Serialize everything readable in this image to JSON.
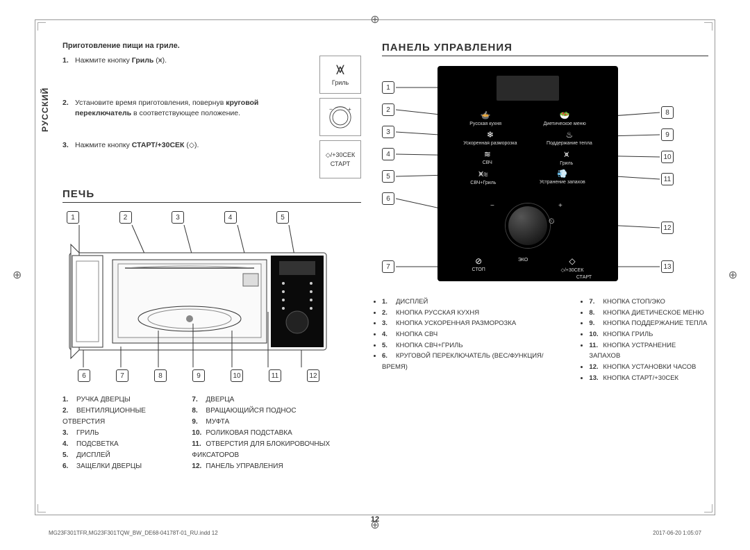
{
  "meta": {
    "page_number": "12",
    "footer_left": "MG23F301TFR,MG23F301TQW_BW_DE68-04178T-01_RU.indd   12",
    "footer_right": "2017-06-20   1:05:07",
    "language_tab": "РУССКИЙ"
  },
  "colors": {
    "text": "#333333",
    "panel_bg": "#000000",
    "panel_text": "#dddddd",
    "border": "#999999"
  },
  "left": {
    "cooking_title": "Приготовление пищи на гриле.",
    "steps": [
      {
        "num": "1.",
        "html": "Нажмите кнопку <b>Гриль</b> (⩙)."
      },
      {
        "num": "2.",
        "html": "Установите время приготовления, повернув <b>круговой переключатель</b> в соответствующее положение."
      },
      {
        "num": "3.",
        "html": "Нажмите кнопку <b>СТАРТ/+30СЕК</b> (◇)."
      }
    ],
    "icon1": {
      "symbol": "⩙",
      "label": "Гриль"
    },
    "icon3_top": "◇/+30СЕК",
    "icon3_bottom": "СТАРТ",
    "section_oven": "ПЕЧЬ",
    "oven_callouts_top": [
      "1",
      "2",
      "3",
      "4",
      "5"
    ],
    "oven_callouts_bottom": [
      "6",
      "7",
      "8",
      "9",
      "10",
      "11",
      "12"
    ],
    "oven_legend_left": [
      "РУЧКА ДВЕРЦЫ",
      "ВЕНТИЛЯЦИОННЫЕ ОТВЕРСТИЯ",
      "ГРИЛЬ",
      "ПОДСВЕТКА",
      "ДИСПЛЕЙ",
      "ЗАЩЕЛКИ ДВЕРЦЫ"
    ],
    "oven_legend_right": [
      "ДВЕРЦА",
      "ВРАЩАЮЩИЙСЯ ПОДНОС",
      "МУФТА",
      "РОЛИКОВАЯ ПОДСТАВКА",
      "ОТВЕРСТИЯ ДЛЯ БЛОКИРОВОЧНЫХ ФИКСАТОРОВ",
      "ПАНЕЛЬ УПРАВЛЕНИЯ"
    ]
  },
  "right": {
    "section_panel": "ПАНЕЛЬ УПРАВЛЕНИЯ",
    "left_callouts": [
      "1",
      "2",
      "3",
      "4",
      "5",
      "6",
      "7"
    ],
    "right_callouts": [
      "8",
      "9",
      "10",
      "11",
      "12",
      "13"
    ],
    "btn_rows": {
      "row1_labels": [
        "Русская кухня",
        "Диетическое меню"
      ],
      "row2_labels": [
        "Ускоренная разморозка",
        "Поддержание тепла"
      ],
      "row3_labels": [
        "СВЧ",
        "Гриль"
      ],
      "row4_labels": [
        "СВЧ+Гриль",
        "Устранение запахов"
      ],
      "bottom": [
        "СТОП",
        "ЭКО",
        "СТАРТ"
      ]
    },
    "plus30": "◇/+30СЕК",
    "legend_left": [
      "ДИСПЛЕЙ",
      "КНОПКА РУССКАЯ КУХНЯ",
      "КНОПКА УСКОРЕННАЯ РАЗМОРОЗКА",
      "КНОПКА СВЧ",
      "КНОПКА СВЧ+ГРИЛЬ",
      "КРУГОВОЙ ПЕРЕКЛЮЧАТЕЛЬ (ВЕС/ФУНКЦИЯ/ВРЕМЯ)"
    ],
    "legend_right": [
      "КНОПКА СТОП/ЭКО",
      "КНОПКА ДИЕТИЧЕСКОЕ МЕНЮ",
      "КНОПКА ПОДДЕРЖАНИЕ ТЕПЛА",
      "КНОПКА ГРИЛЬ",
      "КНОПКА УСТРАНЕНИЕ ЗАПАХОВ",
      "КНОПКА УСТАНОВКИ ЧАСОВ",
      "КНОПКА СТАРТ/+30СЕК"
    ]
  }
}
